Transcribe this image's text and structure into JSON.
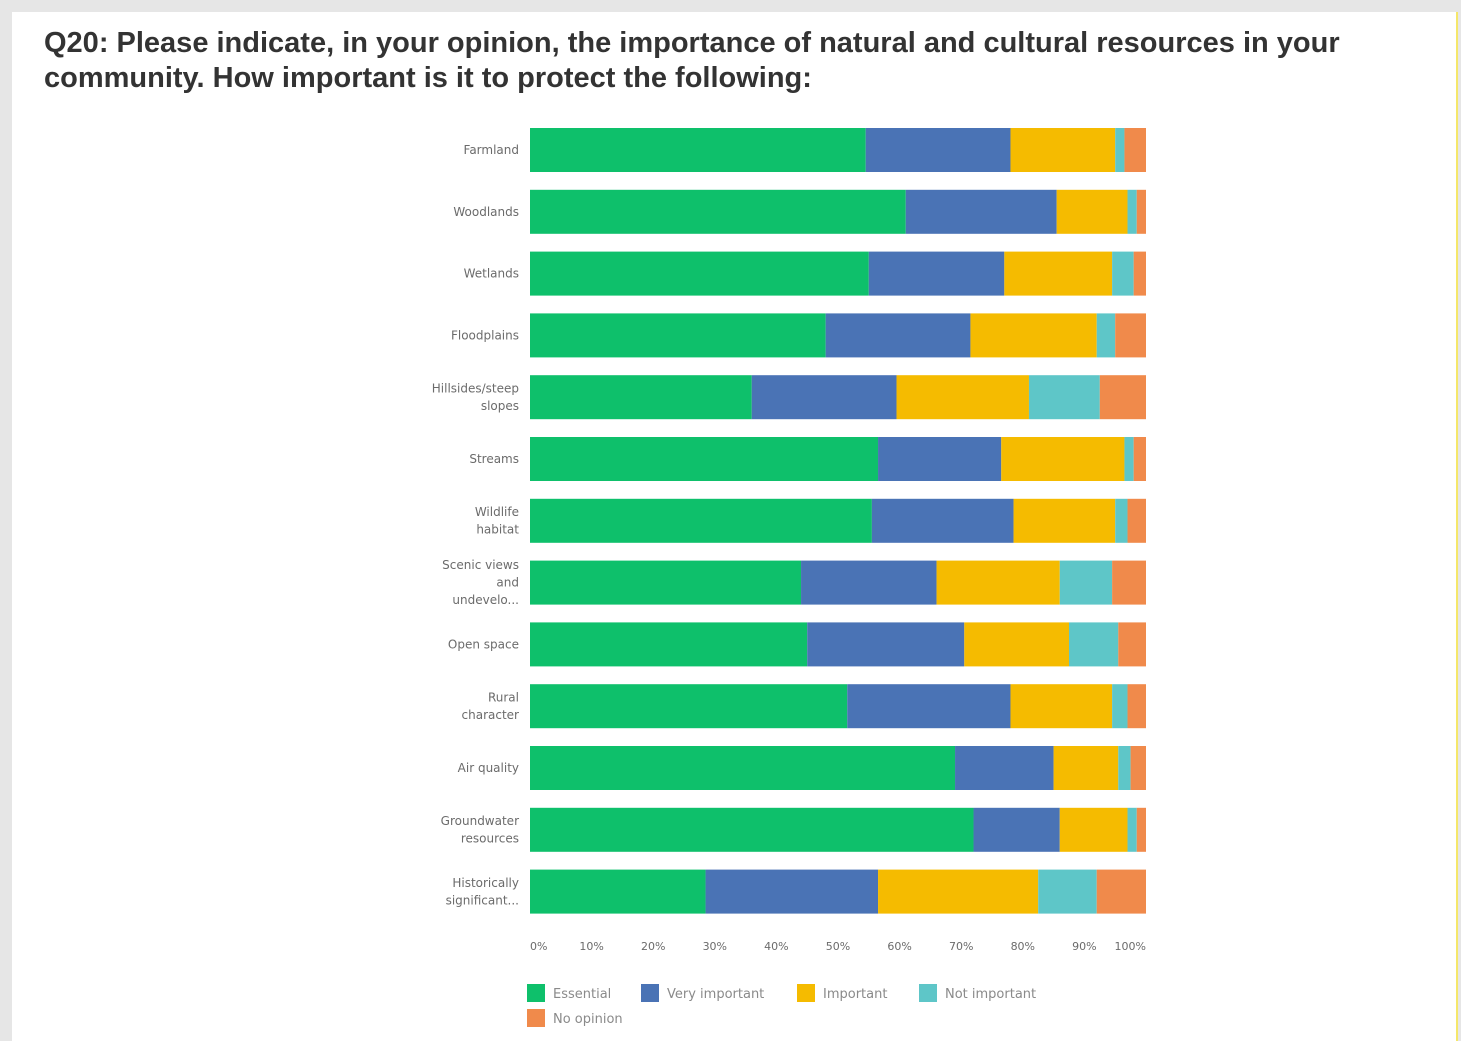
{
  "title": "Q20: Please indicate, in your opinion, the importance of natural and cultural resources in your community.  How important is it to protect the following:",
  "colors": {
    "essential": "#0ec06b",
    "very_important": "#4a73b5",
    "important": "#f5bb00",
    "not_important": "#5ec6c8",
    "no_opinion": "#f08a4b"
  },
  "chart_data": {
    "type": "bar",
    "orientation": "horizontal",
    "stacked": "percent",
    "categories": [
      [
        "Farmland"
      ],
      [
        "Woodlands"
      ],
      [
        "Wetlands"
      ],
      [
        "Floodplains"
      ],
      [
        "Hillsides/steep",
        "slopes"
      ],
      [
        "Streams"
      ],
      [
        "Wildlife",
        "habitat"
      ],
      [
        "Scenic views",
        "and",
        "undevelo..."
      ],
      [
        "Open space"
      ],
      [
        "Rural",
        "character"
      ],
      [
        "Air quality"
      ],
      [
        "Groundwater",
        "resources"
      ],
      [
        "Historically",
        "significant..."
      ]
    ],
    "series": [
      {
        "name": "Essential",
        "color": "#0ec06b",
        "values": [
          54.5,
          61,
          55,
          48,
          36,
          56.5,
          55.5,
          44,
          45,
          51.5,
          69,
          72,
          28.5
        ]
      },
      {
        "name": "Very important",
        "color": "#4a73b5",
        "values": [
          23.5,
          24.5,
          22,
          23.5,
          23.5,
          20,
          23,
          22,
          25.5,
          26.5,
          16,
          14,
          28
        ]
      },
      {
        "name": "Important",
        "color": "#f5bb00",
        "values": [
          17,
          11.5,
          17.5,
          20.5,
          21.5,
          20,
          16.5,
          20,
          17,
          16.5,
          10.5,
          11,
          26
        ]
      },
      {
        "name": "Not important",
        "color": "#5ec6c8",
        "values": [
          1.5,
          1.5,
          3.5,
          3,
          11.5,
          1.5,
          2,
          8.5,
          8,
          2.5,
          2,
          1.5,
          9.5
        ]
      },
      {
        "name": "No opinion",
        "color": "#f08a4b",
        "values": [
          3.5,
          1.5,
          2,
          5,
          7.5,
          2,
          3,
          5.5,
          4.5,
          3,
          2.5,
          1.5,
          8
        ]
      }
    ],
    "xticks": [
      "0%",
      "10%",
      "20%",
      "30%",
      "40%",
      "50%",
      "60%",
      "70%",
      "80%",
      "90%",
      "100%"
    ],
    "xlim": [
      0,
      100
    ],
    "legend_position": "bottom",
    "grid": false
  }
}
